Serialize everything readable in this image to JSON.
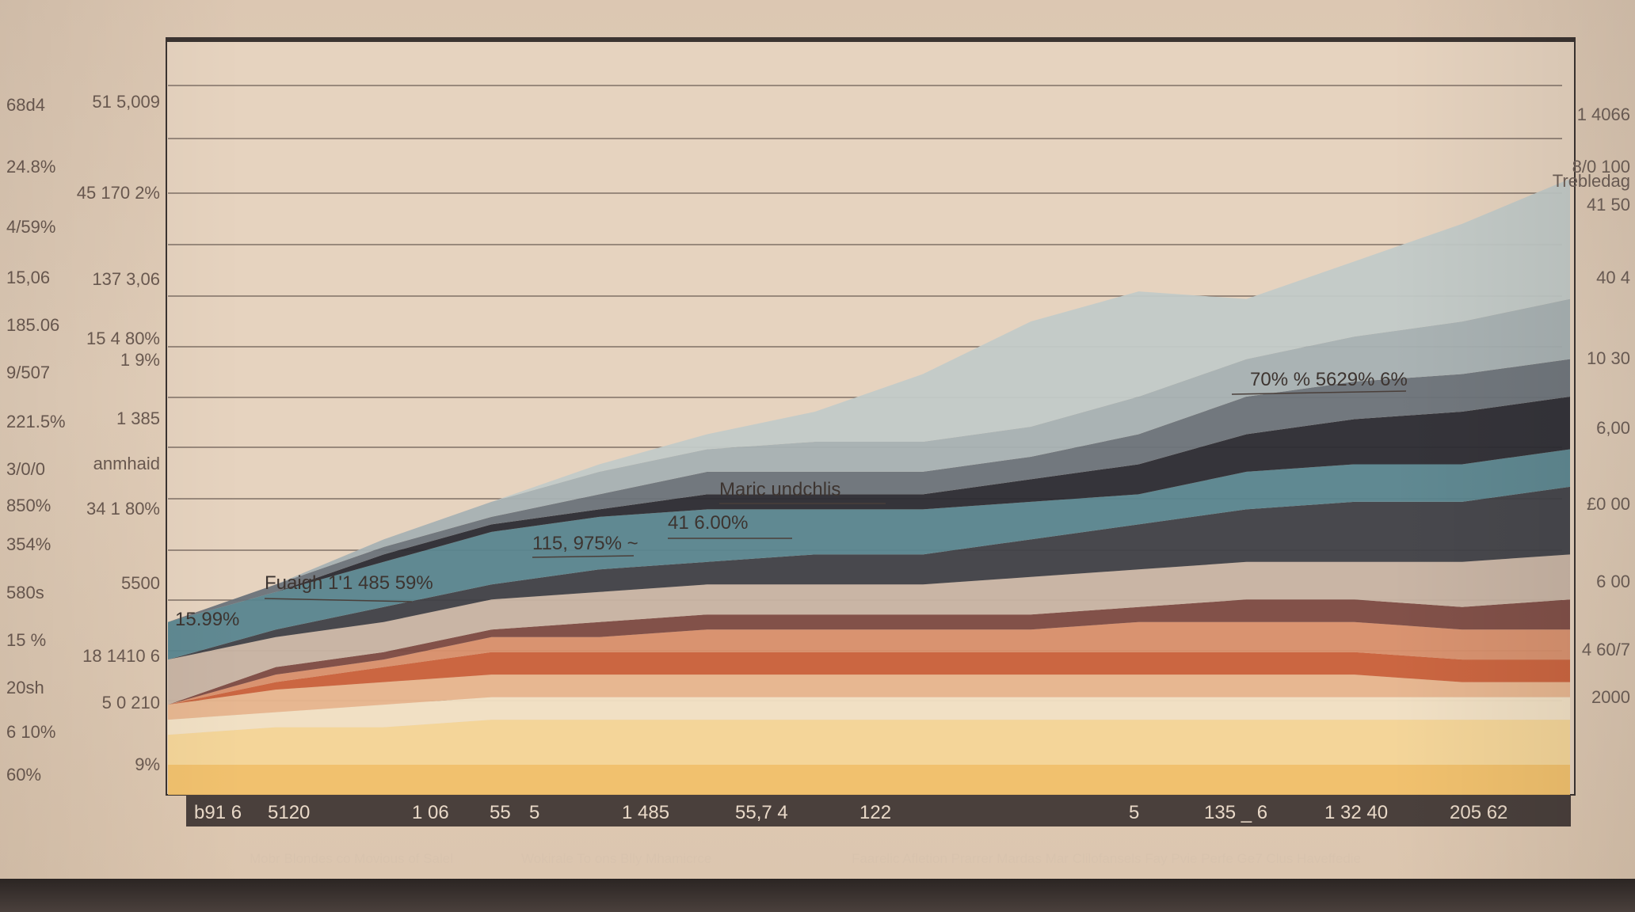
{
  "chart_data": {
    "type": "area",
    "title": "",
    "xlabel": "",
    "ylabel": "",
    "grid": true,
    "x_ticks": [
      "b91 6",
      "5120",
      "1 06",
      "55",
      "5",
      "1 485",
      "55,7 4",
      "122",
      "5",
      "135 _ 6",
      "1 32 40",
      "205 62"
    ],
    "y_ticks_outer_left": [
      "68d4",
      "24.8%",
      "4/59%",
      "15,06",
      "185.06",
      "9/507",
      "221.5%",
      "3/0/0",
      "850%",
      "354%",
      "580s",
      "15 %",
      "20sh",
      "6 10%",
      "60%"
    ],
    "y_ticks_inner_left": [
      "51 5,009",
      "45 170 2%",
      "137 3,06",
      "15 4 80%",
      "1 9%",
      "1 385",
      "anmhaid",
      "34 1 80%",
      "5500",
      "18 1410 6",
      "5 0 210",
      "9%"
    ],
    "y_ticks_right": [
      "1 4066",
      "8/0 100",
      "Trebledag",
      "41 50",
      "40 4",
      "10 30",
      "6,00",
      "£0 00",
      "6 00",
      "4 60/7",
      "2000"
    ],
    "annotations": [
      "15.99%",
      "Fuaigh 1'1 485 59%",
      "115, 975% ~",
      "41 6.00%",
      "Maric undchlis",
      "70% % 5629% 6%"
    ],
    "footer_caption": [
      "Mobr Blondes co Movious of Salel",
      "Wokirale  To ons  Blly Mhamicrce",
      "Faarelic Afletion Prarrer Mardas Mar Clilofansels Fay Pvie Perfe Ge7 Clus Haveffedie"
    ],
    "x": [
      0,
      1,
      2,
      3,
      4,
      5,
      6,
      7,
      8,
      9,
      10,
      11,
      12,
      13
    ],
    "ylim": [
      0,
      100
    ],
    "series": [
      {
        "color": "#f1c069",
        "values": [
          4,
          4,
          4,
          4,
          4,
          4,
          4,
          4,
          4,
          4,
          4,
          4,
          4,
          4
        ]
      },
      {
        "color": "#f4d597",
        "values": [
          4,
          5,
          5,
          6,
          6,
          6,
          6,
          6,
          6,
          6,
          6,
          6,
          6,
          6
        ]
      },
      {
        "color": "#f1e0c4",
        "values": [
          2,
          2,
          3,
          3,
          3,
          3,
          3,
          3,
          3,
          3,
          3,
          3,
          3,
          3
        ]
      },
      {
        "color": "#e7b58e",
        "values": [
          2,
          3,
          3,
          3,
          3,
          3,
          3,
          3,
          3,
          3,
          3,
          3,
          2,
          2
        ]
      },
      {
        "color": "#c9603a",
        "values": [
          0,
          1,
          2,
          3,
          3,
          3,
          3,
          3,
          3,
          3,
          3,
          3,
          3,
          3
        ]
      },
      {
        "color": "#d88f6c",
        "values": [
          0,
          1,
          1,
          2,
          2,
          3,
          3,
          3,
          3,
          4,
          4,
          4,
          4,
          4
        ]
      },
      {
        "color": "#7c4a42",
        "values": [
          0,
          1,
          1,
          1,
          2,
          2,
          2,
          2,
          2,
          2,
          3,
          3,
          3,
          4
        ]
      },
      {
        "color": "#c7b3a3",
        "values": [
          6,
          4,
          4,
          4,
          4,
          4,
          4,
          4,
          5,
          5,
          5,
          5,
          6,
          6
        ]
      },
      {
        "color": "#3f4047",
        "values": [
          0,
          1,
          2,
          2,
          3,
          3,
          4,
          4,
          5,
          6,
          7,
          8,
          8,
          9
        ]
      },
      {
        "color": "#58858f",
        "values": [
          5,
          5,
          6,
          7,
          7,
          7,
          6,
          6,
          5,
          4,
          5,
          5,
          5,
          5
        ]
      },
      {
        "color": "#2b2b33",
        "values": [
          0,
          0,
          1,
          1,
          1,
          2,
          2,
          2,
          3,
          4,
          5,
          6,
          7,
          7
        ]
      },
      {
        "color": "#6b737a",
        "values": [
          0,
          1,
          1,
          1,
          2,
          3,
          3,
          3,
          3,
          4,
          5,
          5,
          5,
          5
        ]
      },
      {
        "color": "#a7b1b3",
        "values": [
          0,
          0,
          1,
          2,
          3,
          3,
          4,
          4,
          4,
          5,
          5,
          6,
          7,
          8
        ]
      },
      {
        "color": "#c2cac8",
        "values": [
          0,
          0,
          0,
          0,
          1,
          2,
          4,
          9,
          14,
          14,
          8,
          10,
          13,
          16
        ]
      }
    ]
  }
}
